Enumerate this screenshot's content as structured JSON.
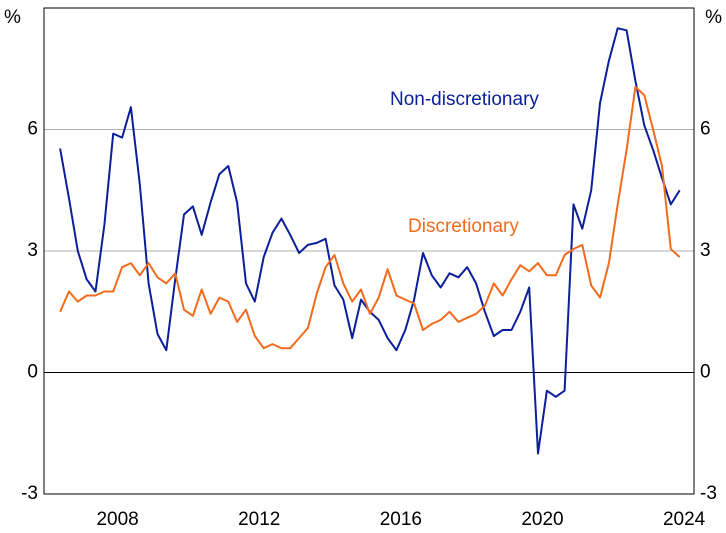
{
  "chart_data": {
    "type": "line",
    "ylabel": "%",
    "annotations": [
      "Non-discretionary",
      "Discretionary"
    ],
    "x": [
      2006.875,
      2007.125,
      2007.375,
      2007.625,
      2007.875,
      2008.125,
      2008.375,
      2008.625,
      2008.875,
      2009.125,
      2009.375,
      2009.625,
      2009.875,
      2010.125,
      2010.375,
      2010.625,
      2010.875,
      2011.125,
      2011.375,
      2011.625,
      2011.875,
      2012.125,
      2012.375,
      2012.625,
      2012.875,
      2013.125,
      2013.375,
      2013.625,
      2013.875,
      2014.125,
      2014.375,
      2014.625,
      2014.875,
      2015.125,
      2015.375,
      2015.625,
      2015.875,
      2016.125,
      2016.375,
      2016.625,
      2016.875,
      2017.125,
      2017.375,
      2017.625,
      2017.875,
      2018.125,
      2018.375,
      2018.625,
      2018.875,
      2019.125,
      2019.375,
      2019.625,
      2019.875,
      2020.125,
      2020.375,
      2020.625,
      2020.875,
      2021.125,
      2021.375,
      2021.625,
      2021.875,
      2022.125,
      2022.375,
      2022.625,
      2022.875,
      2023.125,
      2023.375,
      2023.625,
      2023.875,
      2024.125,
      2024.375
    ],
    "series": [
      {
        "name": "Non-discretionary",
        "color": "#0b1f9a",
        "values": [
          5.53,
          4.3,
          3.0,
          2.3,
          2.0,
          3.65,
          5.9,
          5.8,
          6.55,
          4.65,
          2.2,
          0.95,
          0.55,
          2.3,
          3.9,
          4.1,
          3.4,
          4.2,
          4.9,
          5.1,
          4.2,
          2.2,
          1.75,
          2.85,
          3.45,
          3.8,
          3.4,
          2.95,
          3.15,
          3.2,
          3.3,
          2.15,
          1.8,
          0.85,
          1.8,
          1.5,
          1.3,
          0.85,
          0.55,
          1.05,
          1.8,
          2.95,
          2.4,
          2.1,
          2.45,
          2.35,
          2.6,
          2.2,
          1.5,
          0.9,
          1.05,
          1.05,
          1.5,
          2.1,
          -2.0,
          -0.45,
          -0.6,
          -0.45,
          4.15,
          3.55,
          4.5,
          6.65,
          7.7,
          8.5,
          8.45,
          7.2,
          6.1,
          5.5,
          4.8,
          4.15,
          4.5
        ]
      },
      {
        "name": "Discretionary",
        "color": "#f26b1d",
        "values": [
          1.5,
          2.0,
          1.75,
          1.9,
          1.9,
          2.0,
          2.0,
          2.6,
          2.7,
          2.4,
          2.7,
          2.35,
          2.2,
          2.45,
          1.55,
          1.4,
          2.05,
          1.45,
          1.85,
          1.75,
          1.25,
          1.55,
          0.9,
          0.6,
          0.7,
          0.6,
          0.6,
          0.85,
          1.1,
          1.95,
          2.6,
          2.9,
          2.2,
          1.75,
          2.05,
          1.45,
          1.85,
          2.55,
          1.9,
          1.8,
          1.7,
          1.05,
          1.2,
          1.3,
          1.5,
          1.25,
          1.35,
          1.45,
          1.65,
          2.2,
          1.9,
          2.3,
          2.65,
          2.5,
          2.7,
          2.4,
          2.4,
          2.9,
          3.05,
          3.15,
          2.15,
          1.85,
          2.7,
          4.15,
          5.5,
          7.05,
          6.85,
          6.0,
          5.1,
          3.05,
          2.85
        ]
      }
    ],
    "xlim": [
      2006.42,
      2024.78
    ],
    "xticks": [
      {
        "value": 2008.5,
        "label": "2008"
      },
      {
        "value": 2012.5,
        "label": "2012"
      },
      {
        "value": 2016.5,
        "label": "2016"
      },
      {
        "value": 2020.5,
        "label": "2020"
      },
      {
        "value": 2024.5,
        "label": "2024"
      }
    ],
    "ylim": [
      -3,
      9
    ],
    "yticks": [
      -3,
      0,
      3,
      6
    ],
    "y2lim": [
      -3,
      9
    ],
    "y2ticks": [
      -3,
      0,
      3,
      6
    ],
    "grid": true
  }
}
